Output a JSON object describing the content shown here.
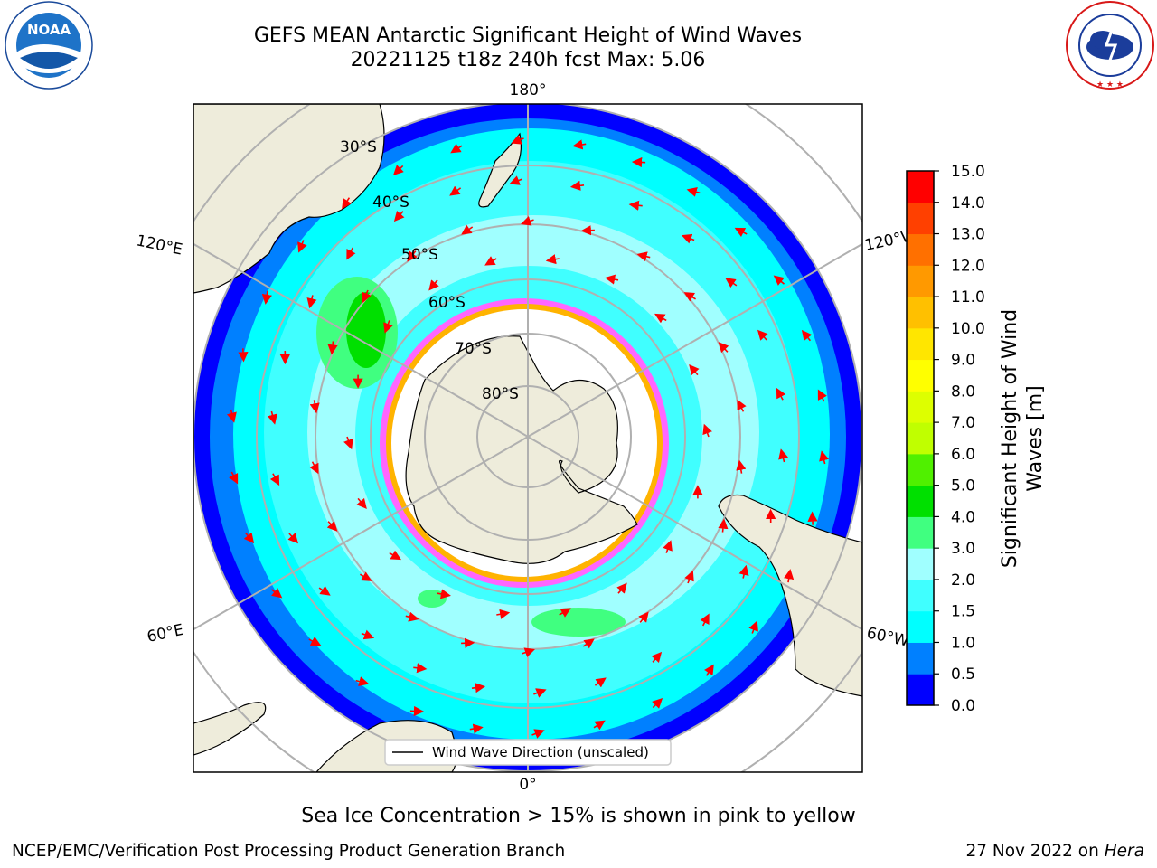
{
  "header": {
    "title_line1": "GEFS MEAN Antarctic Significant Height of Wind Waves",
    "title_line2": "20221125 t18z 240h fcst   Max: 5.06"
  },
  "logos": {
    "left": {
      "name": "noaa-logo",
      "text": "NOAA",
      "ring_text": "NATIONAL OCEANIC AND ATMOSPHERIC ADMINISTRATION · U.S. DEPARTMENT OF COMMERCE"
    },
    "right": {
      "name": "nws-logo",
      "ring_text": "NATIONAL WEATHER SERVICE"
    }
  },
  "map": {
    "projection": "south-polar-stereographic",
    "longitude_labels": {
      "top": "180°",
      "bottom": "0°",
      "left_upper": "120°E",
      "left_lower": "60°E",
      "right_upper": "120°W",
      "right_lower": "60°W"
    },
    "latitude_labels": [
      "30°S",
      "40°S",
      "50°S",
      "60°S",
      "70°S",
      "80°S"
    ],
    "legend_label": "Wind Wave Direction (unscaled)",
    "colors": {
      "land": "#eeecdb",
      "ice_free_wave_low": "#0000ff",
      "sea_ice_edge": [
        "#ff66ff",
        "#ffb300",
        "#ffff66"
      ],
      "arrows": "#ff0000",
      "grid": "#b0b0b0"
    }
  },
  "colorbar": {
    "label_line1": "Significant Height of Wind",
    "label_line2": "Waves [m]",
    "ticks": [
      "0.0",
      "0.5",
      "1.0",
      "1.5",
      "2.0",
      "3.0",
      "4.0",
      "5.0",
      "6.0",
      "7.0",
      "8.0",
      "9.0",
      "10.0",
      "11.0",
      "12.0",
      "13.0",
      "14.0",
      "15.0"
    ],
    "colors": [
      "#0000ff",
      "#0080ff",
      "#00ffff",
      "#40ffff",
      "#a0ffff",
      "#40ff80",
      "#00e000",
      "#50f000",
      "#c0ff00",
      "#ddff00",
      "#ffff00",
      "#ffe600",
      "#ffc000",
      "#ff9900",
      "#ff7000",
      "#ff4000",
      "#ff0000"
    ]
  },
  "notes": {
    "ice": "Sea Ice Concentration > 15% is shown in pink to yellow"
  },
  "footer": {
    "left": "NCEP/EMC/Verification Post Processing Product Generation Branch",
    "date": "27 Nov 2022 on",
    "host": "Hera"
  },
  "chart_data": {
    "type": "heatmap",
    "title": "GEFS MEAN Antarctic Significant Height of Wind Waves",
    "subtitle": "20221125 t18z 240h fcst   Max: 5.06",
    "variable": "Significant Height of Wind Waves [m]",
    "max": 5.06,
    "colorbar_levels": [
      0.0,
      0.5,
      1.0,
      1.5,
      2.0,
      3.0,
      4.0,
      5.0,
      6.0,
      7.0,
      8.0,
      9.0,
      10.0,
      11.0,
      12.0,
      13.0,
      14.0,
      15.0
    ],
    "legend": "Wind Wave Direction (unscaled)",
    "note": "Sea Ice Concentration > 15% is shown in pink to yellow"
  }
}
